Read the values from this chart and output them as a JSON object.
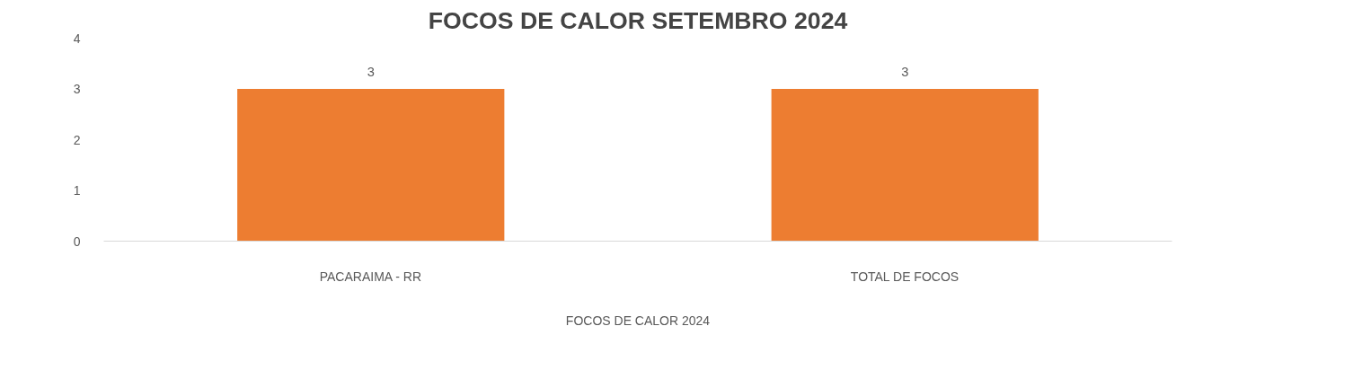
{
  "chart_data": {
    "type": "bar",
    "title": "FOCOS DE CALOR SETEMBRO 2024",
    "xlabel": "FOCOS DE CALOR 2024",
    "categories": [
      "PACARAIMA - RR",
      "TOTAL DE FOCOS"
    ],
    "values": [
      3,
      3
    ],
    "color": "#ed7d31",
    "ylim": [
      0,
      4
    ],
    "yticks": [
      0,
      1,
      2,
      3,
      4
    ],
    "grid": false,
    "data_labels": true
  }
}
